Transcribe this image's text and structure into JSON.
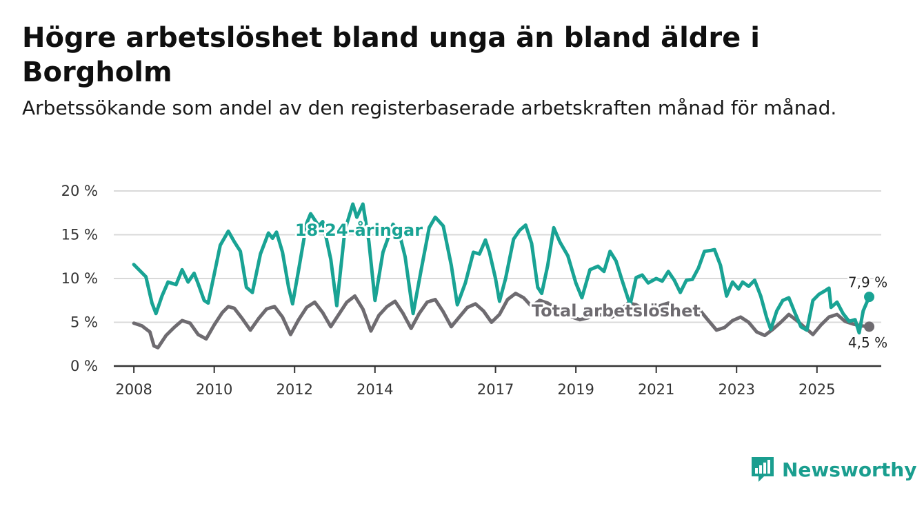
{
  "title": "Högre arbetslöshet bland unga än bland äldre i Borgholm",
  "subtitle": "Arbetssökande som andel av den registerbaserade arbetskraften månad för månad.",
  "brand": {
    "name": "Newsworthy",
    "icon": "bar-chart-badge-icon",
    "color": "#1a9e8f"
  },
  "chart_data": {
    "type": "line",
    "title": "Högre arbetslöshet bland unga än bland äldre i Borgholm",
    "xlabel": "",
    "ylabel": "",
    "x_range": [
      2007.5,
      2026.6
    ],
    "ylim": [
      0,
      20
    ],
    "grid": true,
    "y_ticks": [
      0,
      5,
      10,
      15,
      20
    ],
    "y_tick_labels": [
      "0 %",
      "5 %",
      "10 %",
      "15 %",
      "20 %"
    ],
    "x_ticks": [
      2008,
      2010,
      2012,
      2014,
      2017,
      2019,
      2021,
      2023,
      2025
    ],
    "x_tick_labels": [
      "2008",
      "2010",
      "2012",
      "2014",
      "2017",
      "2019",
      "2021",
      "2023",
      "2025"
    ],
    "series": [
      {
        "name": "Total arbetslöshet",
        "color": "#6e6b70",
        "last_label": "4,5 %",
        "points": [
          [
            2008.0,
            4.9
          ],
          [
            2008.2,
            4.6
          ],
          [
            2008.4,
            3.9
          ],
          [
            2008.5,
            2.3
          ],
          [
            2008.6,
            2.1
          ],
          [
            2008.8,
            3.5
          ],
          [
            2009.0,
            4.4
          ],
          [
            2009.2,
            5.2
          ],
          [
            2009.4,
            4.9
          ],
          [
            2009.6,
            3.6
          ],
          [
            2009.8,
            3.1
          ],
          [
            2010.0,
            4.7
          ],
          [
            2010.2,
            6.1
          ],
          [
            2010.35,
            6.8
          ],
          [
            2010.5,
            6.6
          ],
          [
            2010.7,
            5.4
          ],
          [
            2010.9,
            4.1
          ],
          [
            2011.1,
            5.4
          ],
          [
            2011.3,
            6.5
          ],
          [
            2011.5,
            6.8
          ],
          [
            2011.7,
            5.6
          ],
          [
            2011.9,
            3.6
          ],
          [
            2012.1,
            5.3
          ],
          [
            2012.3,
            6.7
          ],
          [
            2012.5,
            7.3
          ],
          [
            2012.7,
            6.1
          ],
          [
            2012.9,
            4.5
          ],
          [
            2013.1,
            5.9
          ],
          [
            2013.3,
            7.3
          ],
          [
            2013.5,
            8.0
          ],
          [
            2013.7,
            6.5
          ],
          [
            2013.9,
            4.0
          ],
          [
            2014.1,
            5.8
          ],
          [
            2014.3,
            6.8
          ],
          [
            2014.5,
            7.4
          ],
          [
            2014.7,
            6.0
          ],
          [
            2014.9,
            4.3
          ],
          [
            2015.1,
            6.0
          ],
          [
            2015.3,
            7.3
          ],
          [
            2015.5,
            7.6
          ],
          [
            2015.7,
            6.2
          ],
          [
            2015.9,
            4.5
          ],
          [
            2016.1,
            5.6
          ],
          [
            2016.3,
            6.7
          ],
          [
            2016.5,
            7.1
          ],
          [
            2016.7,
            6.3
          ],
          [
            2016.9,
            5.0
          ],
          [
            2017.1,
            5.9
          ],
          [
            2017.3,
            7.6
          ],
          [
            2017.5,
            8.3
          ],
          [
            2017.7,
            7.8
          ],
          [
            2017.9,
            6.8
          ],
          [
            2018.1,
            7.5
          ],
          [
            2018.3,
            7.2
          ],
          [
            2018.5,
            6.6
          ],
          [
            2018.7,
            6.1
          ],
          [
            2018.9,
            5.6
          ],
          [
            2019.1,
            5.3
          ],
          [
            2019.3,
            5.5
          ],
          [
            2019.5,
            5.9
          ],
          [
            2019.7,
            5.8
          ],
          [
            2019.9,
            5.6
          ],
          [
            2020.1,
            6.3
          ],
          [
            2020.3,
            7.2
          ],
          [
            2020.5,
            7.0
          ],
          [
            2020.7,
            6.4
          ],
          [
            2020.9,
            6.0
          ],
          [
            2021.1,
            6.9
          ],
          [
            2021.3,
            7.2
          ],
          [
            2021.5,
            6.4
          ],
          [
            2021.7,
            5.8
          ],
          [
            2021.9,
            6.0
          ],
          [
            2022.1,
            6.3
          ],
          [
            2022.3,
            5.2
          ],
          [
            2022.5,
            4.1
          ],
          [
            2022.7,
            4.4
          ],
          [
            2022.9,
            5.2
          ],
          [
            2023.1,
            5.6
          ],
          [
            2023.3,
            5.0
          ],
          [
            2023.5,
            3.9
          ],
          [
            2023.7,
            3.5
          ],
          [
            2023.9,
            4.2
          ],
          [
            2024.1,
            5.0
          ],
          [
            2024.3,
            5.9
          ],
          [
            2024.5,
            5.2
          ],
          [
            2024.7,
            4.4
          ],
          [
            2024.9,
            3.6
          ],
          [
            2025.1,
            4.7
          ],
          [
            2025.3,
            5.6
          ],
          [
            2025.5,
            5.9
          ],
          [
            2025.7,
            5.1
          ],
          [
            2025.9,
            4.8
          ],
          [
            2026.1,
            4.6
          ],
          [
            2026.3,
            4.5
          ]
        ]
      },
      {
        "name": "18-24-åringar",
        "color": "#19a394",
        "last_label": "7,9 %",
        "points": [
          [
            2008.0,
            11.6
          ],
          [
            2008.3,
            10.2
          ],
          [
            2008.45,
            7.2
          ],
          [
            2008.55,
            6.0
          ],
          [
            2008.7,
            8.0
          ],
          [
            2008.85,
            9.6
          ],
          [
            2009.05,
            9.3
          ],
          [
            2009.2,
            11.0
          ],
          [
            2009.35,
            9.6
          ],
          [
            2009.5,
            10.6
          ],
          [
            2009.6,
            9.4
          ],
          [
            2009.75,
            7.5
          ],
          [
            2009.85,
            7.2
          ],
          [
            2010.0,
            10.5
          ],
          [
            2010.15,
            13.8
          ],
          [
            2010.35,
            15.4
          ],
          [
            2010.5,
            14.2
          ],
          [
            2010.65,
            13.1
          ],
          [
            2010.8,
            9.0
          ],
          [
            2010.95,
            8.4
          ],
          [
            2011.15,
            12.8
          ],
          [
            2011.35,
            15.2
          ],
          [
            2011.45,
            14.6
          ],
          [
            2011.55,
            15.3
          ],
          [
            2011.7,
            13.0
          ],
          [
            2011.85,
            9.0
          ],
          [
            2011.95,
            7.1
          ],
          [
            2012.1,
            11.0
          ],
          [
            2012.3,
            16.3
          ],
          [
            2012.4,
            17.4
          ],
          [
            2012.6,
            16.0
          ],
          [
            2012.7,
            16.5
          ],
          [
            2012.9,
            12.2
          ],
          [
            2013.05,
            6.9
          ],
          [
            2013.25,
            15.5
          ],
          [
            2013.45,
            18.5
          ],
          [
            2013.55,
            17.0
          ],
          [
            2013.7,
            18.5
          ],
          [
            2013.85,
            14.2
          ],
          [
            2014.0,
            7.5
          ],
          [
            2014.2,
            13.0
          ],
          [
            2014.45,
            16.2
          ],
          [
            2014.6,
            15.3
          ],
          [
            2014.75,
            12.5
          ],
          [
            2014.95,
            6.0
          ],
          [
            2015.15,
            11.0
          ],
          [
            2015.35,
            15.8
          ],
          [
            2015.5,
            17.0
          ],
          [
            2015.7,
            16.0
          ],
          [
            2015.9,
            11.5
          ],
          [
            2016.05,
            7.0
          ],
          [
            2016.25,
            9.5
          ],
          [
            2016.45,
            13.0
          ],
          [
            2016.6,
            12.8
          ],
          [
            2016.75,
            14.4
          ],
          [
            2016.85,
            13.0
          ],
          [
            2017.0,
            10.0
          ],
          [
            2017.1,
            7.4
          ],
          [
            2017.25,
            10.0
          ],
          [
            2017.45,
            14.5
          ],
          [
            2017.6,
            15.5
          ],
          [
            2017.75,
            16.1
          ],
          [
            2017.9,
            14.0
          ],
          [
            2018.05,
            9.0
          ],
          [
            2018.15,
            8.3
          ],
          [
            2018.3,
            11.5
          ],
          [
            2018.45,
            15.8
          ],
          [
            2018.6,
            14.2
          ],
          [
            2018.8,
            12.6
          ],
          [
            2019.0,
            9.5
          ],
          [
            2019.15,
            7.8
          ],
          [
            2019.35,
            11.0
          ],
          [
            2019.55,
            11.4
          ],
          [
            2019.7,
            10.8
          ],
          [
            2019.85,
            13.1
          ],
          [
            2020.0,
            12.0
          ],
          [
            2020.15,
            9.8
          ],
          [
            2020.35,
            7.0
          ],
          [
            2020.5,
            10.1
          ],
          [
            2020.65,
            10.4
          ],
          [
            2020.8,
            9.5
          ],
          [
            2021.0,
            10.0
          ],
          [
            2021.15,
            9.7
          ],
          [
            2021.3,
            10.8
          ],
          [
            2021.45,
            9.8
          ],
          [
            2021.6,
            8.4
          ],
          [
            2021.75,
            9.8
          ],
          [
            2021.9,
            9.9
          ],
          [
            2022.05,
            11.2
          ],
          [
            2022.2,
            13.1
          ],
          [
            2022.35,
            13.2
          ],
          [
            2022.45,
            13.3
          ],
          [
            2022.6,
            11.5
          ],
          [
            2022.75,
            8.0
          ],
          [
            2022.9,
            9.6
          ],
          [
            2023.05,
            8.8
          ],
          [
            2023.15,
            9.6
          ],
          [
            2023.3,
            9.1
          ],
          [
            2023.45,
            9.8
          ],
          [
            2023.6,
            8.0
          ],
          [
            2023.75,
            5.5
          ],
          [
            2023.85,
            4.2
          ],
          [
            2024.0,
            6.3
          ],
          [
            2024.15,
            7.5
          ],
          [
            2024.3,
            7.8
          ],
          [
            2024.45,
            6.1
          ],
          [
            2024.6,
            4.5
          ],
          [
            2024.75,
            4.1
          ],
          [
            2024.9,
            7.5
          ],
          [
            2025.05,
            8.2
          ],
          [
            2025.2,
            8.6
          ],
          [
            2025.3,
            8.9
          ],
          [
            2025.35,
            6.7
          ],
          [
            2025.5,
            7.3
          ],
          [
            2025.65,
            6.0
          ],
          [
            2025.8,
            5.1
          ],
          [
            2025.95,
            5.3
          ],
          [
            2026.05,
            3.8
          ],
          [
            2026.15,
            6.3
          ],
          [
            2026.3,
            7.9
          ]
        ]
      }
    ],
    "annotations": [
      {
        "text": "18-24-åringar",
        "series": "18-24-åringar",
        "x": 2013.6,
        "y": 15.5
      },
      {
        "text": "Total arbetslöshet",
        "series": "Total arbetslöshet",
        "x": 2020.0,
        "y": 6.3
      }
    ]
  }
}
